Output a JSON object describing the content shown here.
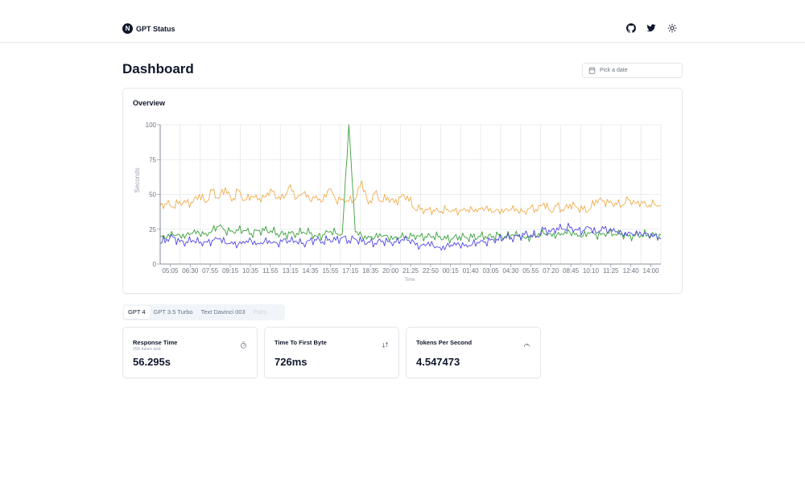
{
  "app": {
    "logo_letter": "N",
    "name": "GPT Status"
  },
  "header_icons": [
    "github-icon",
    "twitter-icon",
    "sun-icon"
  ],
  "page": {
    "title": "Dashboard"
  },
  "date_picker": {
    "placeholder": "Pick a date",
    "icon": "calendar-icon"
  },
  "overview": {
    "title": "Overview"
  },
  "chart_data": {
    "type": "line",
    "title": "",
    "xlabel": "Time",
    "ylabel": "Seconds",
    "ylim": [
      0,
      100
    ],
    "yticks": [
      0,
      25,
      50,
      75,
      100
    ],
    "x_tick_labels": [
      "05:05",
      "06:30",
      "07:55",
      "09:15",
      "10:35",
      "11:55",
      "13:15",
      "14:35",
      "15:55",
      "17:15",
      "18:35",
      "20:00",
      "21:25",
      "22:50",
      "00:15",
      "01:40",
      "03:05",
      "04:30",
      "05:55",
      "07:20",
      "08:45",
      "10:10",
      "11:25",
      "12:40",
      "14:00"
    ],
    "grid": true,
    "legend": "none",
    "series": [
      {
        "color": "#f0ad4e",
        "values": [
          42,
          43,
          41,
          45,
          44,
          44,
          50,
          44,
          53,
          47,
          55,
          45,
          53,
          46,
          49,
          46,
          48,
          54,
          47,
          47,
          57,
          47,
          51,
          46,
          49,
          45,
          54,
          46,
          47,
          45,
          46,
          60,
          43,
          51,
          45,
          48,
          44,
          48,
          49,
          40,
          39,
          39,
          39,
          37,
          39,
          39,
          38,
          38,
          39,
          40,
          40,
          37,
          39,
          39,
          39,
          38,
          38,
          41,
          38,
          44,
          38,
          42,
          38,
          43,
          41,
          39,
          39,
          46,
          45,
          44,
          44,
          42,
          46,
          44,
          45,
          41,
          43,
          42
        ]
      },
      {
        "color": "#3aa03a",
        "values": [
          20,
          19,
          21,
          21,
          21,
          22,
          22,
          22,
          24,
          27,
          24,
          24,
          24,
          24,
          22,
          24,
          24,
          24,
          22,
          21,
          22,
          22,
          23,
          22,
          20,
          21,
          23,
          22,
          22,
          100,
          23,
          20,
          20,
          19,
          20,
          20,
          19,
          19,
          19,
          21,
          20,
          19,
          20,
          20,
          18,
          18,
          20,
          19,
          19,
          20,
          20,
          19,
          21,
          20,
          21,
          20,
          19,
          20,
          20,
          22,
          22,
          21,
          21,
          23,
          22,
          20,
          22,
          21,
          22,
          22,
          21,
          22,
          20,
          20,
          21,
          21,
          20,
          21
        ]
      },
      {
        "color": "#4f46e5",
        "values": [
          15,
          18,
          19,
          16,
          16,
          17,
          15,
          16,
          17,
          18,
          15,
          16,
          14,
          15,
          17,
          15,
          16,
          15,
          15,
          18,
          16,
          16,
          15,
          17,
          17,
          16,
          18,
          17,
          19,
          17,
          18,
          16,
          16,
          15,
          16,
          16,
          16,
          17,
          17,
          16,
          13,
          14,
          13,
          12,
          13,
          13,
          14,
          14,
          14,
          15,
          16,
          18,
          17,
          19,
          19,
          20,
          21,
          21,
          20,
          25,
          23,
          26,
          25,
          26,
          25,
          24,
          26,
          22,
          27,
          24,
          23,
          22,
          23,
          21,
          21,
          22,
          21,
          18
        ]
      }
    ]
  },
  "tabs": [
    {
      "label": "GPT 4",
      "state": "active"
    },
    {
      "label": "GPT 3.5 Turbo",
      "state": "normal"
    },
    {
      "label": "Text Davinci 003",
      "state": "normal"
    },
    {
      "label": "Palm",
      "state": "disabled"
    }
  ],
  "metrics": [
    {
      "title": "Response Time",
      "subtitle": "256 token test",
      "value": "56.295s",
      "icon": "timer-icon"
    },
    {
      "title": "Time To First Byte",
      "subtitle": "",
      "value": "726ms",
      "icon": "arrows-up-down-icon"
    },
    {
      "title": "Tokens Per Second",
      "subtitle": "",
      "value": "4.547473",
      "icon": "gauge-icon"
    }
  ]
}
